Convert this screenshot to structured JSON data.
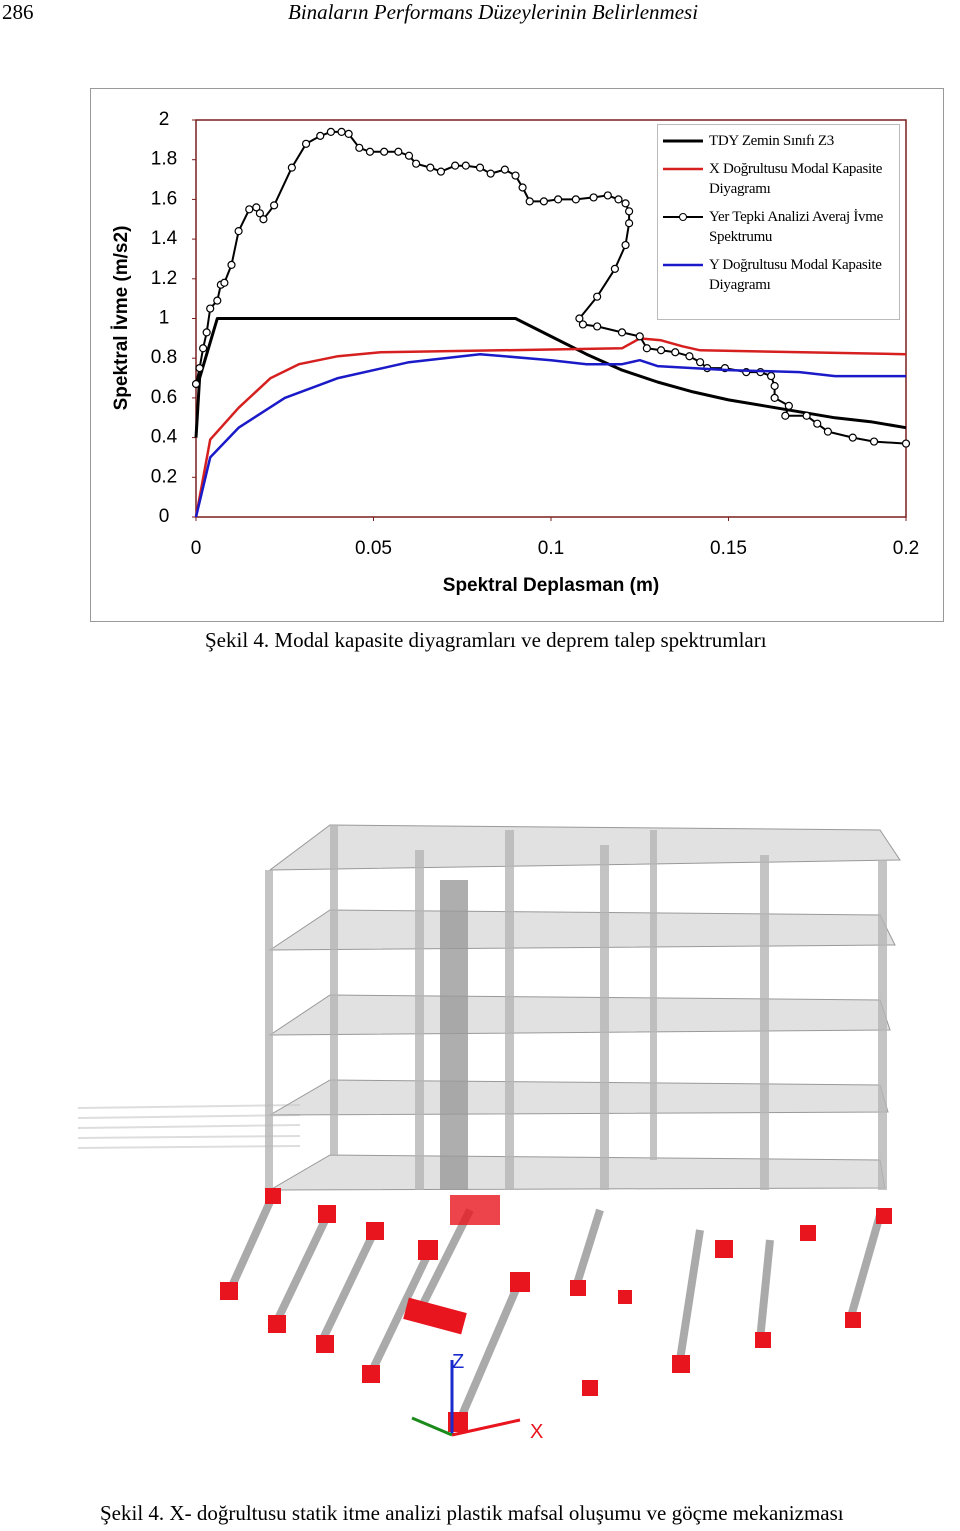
{
  "header": {
    "page_number": "286",
    "title": "Binaların Performans Düzeylerinin Belirlenmesi"
  },
  "chart_data": {
    "type": "line",
    "x_label": "Spektral Deplasman (m)",
    "y_label": "Spektral İvme (m/s2)",
    "xlim": [
      0,
      0.2
    ],
    "ylim": [
      0,
      2
    ],
    "xticks": [
      0,
      0.05,
      0.1,
      0.15,
      0.2
    ],
    "yticks": [
      0,
      0.2,
      0.4,
      0.6,
      0.8,
      1,
      1.2,
      1.4,
      1.6,
      1.8,
      2
    ],
    "frame_color": "#7a1e1e",
    "series": [
      {
        "name": "TDY Zemin Sınıfı Z3",
        "color": "#000000",
        "width": 3,
        "x": [
          0,
          0.001,
          0.006,
          0.09,
          0.1,
          0.11,
          0.12,
          0.13,
          0.14,
          0.15,
          0.16,
          0.17,
          0.18,
          0.19,
          0.2
        ],
        "values": [
          0.4,
          0.7,
          1.0,
          1.0,
          0.91,
          0.82,
          0.74,
          0.68,
          0.63,
          0.59,
          0.56,
          0.53,
          0.5,
          0.48,
          0.45
        ]
      },
      {
        "name": "X Doğrultusu Modal Kapasite Diyagramı",
        "color": "#d62020",
        "width": 2.5,
        "x": [
          0,
          0.004,
          0.012,
          0.021,
          0.029,
          0.04,
          0.052,
          0.086,
          0.12,
          0.125,
          0.131,
          0.137,
          0.142,
          0.2
        ],
        "values": [
          0,
          0.39,
          0.55,
          0.7,
          0.77,
          0.81,
          0.83,
          0.84,
          0.85,
          0.9,
          0.89,
          0.86,
          0.84,
          0.82
        ]
      },
      {
        "name": "Yer Tepki Analizi Averaj İvme Spektrumu",
        "color": "#000000",
        "width": 2,
        "marker": "circle",
        "x": [
          0,
          0.001,
          0.002,
          0.003,
          0.004,
          0.006,
          0.007,
          0.008,
          0.01,
          0.012,
          0.015,
          0.017,
          0.018,
          0.019,
          0.022,
          0.027,
          0.031,
          0.035,
          0.038,
          0.041,
          0.043,
          0.046,
          0.049,
          0.053,
          0.057,
          0.06,
          0.062,
          0.066,
          0.069,
          0.073,
          0.076,
          0.08,
          0.083,
          0.087,
          0.09,
          0.092,
          0.094,
          0.098,
          0.102,
          0.107,
          0.112,
          0.116,
          0.119,
          0.121,
          0.122,
          0.122,
          0.121,
          0.118,
          0.113,
          0.108,
          0.109,
          0.113,
          0.12,
          0.125,
          0.127,
          0.131,
          0.135,
          0.139,
          0.142,
          0.144,
          0.149,
          0.155,
          0.159,
          0.162,
          0.163,
          0.163,
          0.167,
          0.166,
          0.172,
          0.175,
          0.178,
          0.185,
          0.191,
          0.2
        ],
        "values": [
          0.67,
          0.75,
          0.85,
          0.93,
          1.05,
          1.09,
          1.17,
          1.18,
          1.27,
          1.44,
          1.55,
          1.56,
          1.53,
          1.5,
          1.57,
          1.76,
          1.88,
          1.92,
          1.94,
          1.94,
          1.93,
          1.86,
          1.84,
          1.84,
          1.84,
          1.82,
          1.78,
          1.76,
          1.74,
          1.77,
          1.77,
          1.76,
          1.73,
          1.75,
          1.72,
          1.66,
          1.59,
          1.59,
          1.6,
          1.6,
          1.61,
          1.62,
          1.6,
          1.58,
          1.54,
          1.48,
          1.37,
          1.25,
          1.11,
          1.0,
          0.97,
          0.96,
          0.93,
          0.91,
          0.85,
          0.84,
          0.83,
          0.81,
          0.78,
          0.75,
          0.75,
          0.73,
          0.73,
          0.71,
          0.66,
          0.6,
          0.56,
          0.51,
          0.51,
          0.47,
          0.43,
          0.4,
          0.38,
          0.37
        ]
      },
      {
        "name": "Y Doğrultusu Modal Kapasite Diyagramı",
        "color": "#1a1ac8",
        "width": 2.5,
        "x": [
          0,
          0.004,
          0.012,
          0.025,
          0.04,
          0.06,
          0.08,
          0.1,
          0.11,
          0.12,
          0.125,
          0.13,
          0.15,
          0.17,
          0.18,
          0.2
        ],
        "values": [
          0,
          0.3,
          0.45,
          0.6,
          0.7,
          0.78,
          0.82,
          0.79,
          0.77,
          0.77,
          0.79,
          0.76,
          0.74,
          0.73,
          0.71,
          0.71
        ]
      }
    ]
  },
  "captions": [
    "Şekil 4. Modal kapasite diyagramları ve deprem talep spektrumları",
    "Şekil 4. X- doğrultusu statik itme analizi plastik mafsal oluşumu ve göçme mekanizması"
  ],
  "figure": {
    "axis_labels": [
      "Z",
      "X"
    ]
  }
}
